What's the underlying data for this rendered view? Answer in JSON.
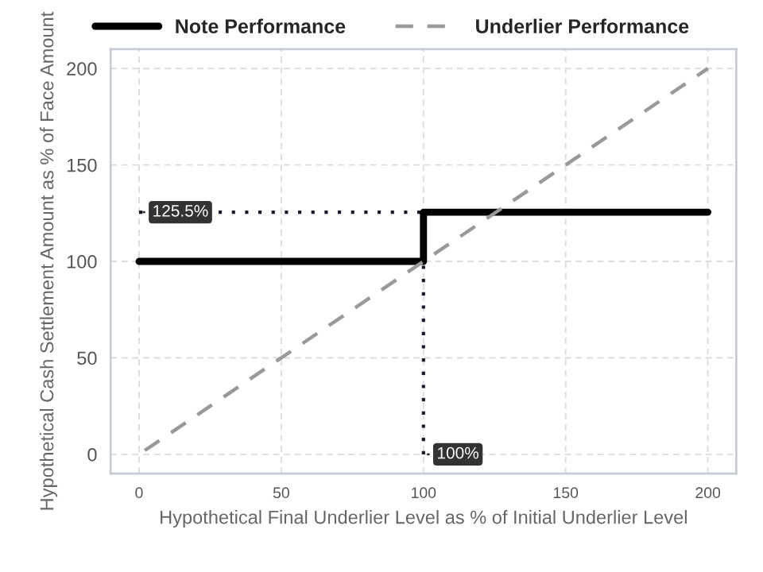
{
  "chart_data": {
    "type": "line",
    "xlabel": "Hypothetical Final Underlier Level as % of Initial Underlier Level",
    "ylabel": "Hypothetical Cash Settlement Amount as % of Face Amount",
    "xlim": [
      -10,
      210
    ],
    "ylim": [
      -10,
      210
    ],
    "xticks": [
      0,
      50,
      100,
      150,
      200
    ],
    "yticks": [
      0,
      50,
      100,
      150,
      200
    ],
    "grid": true,
    "legend": "top",
    "series": [
      {
        "name": "Note Performance",
        "color": "#000000",
        "line_style": "solid",
        "x": [
          0,
          100,
          100,
          200
        ],
        "values": [
          100,
          100,
          125.5,
          125.5
        ]
      },
      {
        "name": "Underlier Performance",
        "color": "#999999",
        "line_style": "dashed",
        "x": [
          2,
          200
        ],
        "values": [
          2,
          200
        ]
      },
      {
        "color": "#1a1a2e",
        "line_style": "dotted",
        "x": [
          0,
          100
        ],
        "values": [
          125.5,
          125.5
        ]
      },
      {
        "color": "#1a1a2e",
        "line_style": "dotted",
        "x": [
          100,
          100
        ],
        "values": [
          0,
          100
        ]
      }
    ],
    "annotations": [
      {
        "text": "125.5%",
        "x": 0,
        "y": 125.5
      },
      {
        "text": "100%",
        "x": 100,
        "y": 0
      }
    ]
  }
}
